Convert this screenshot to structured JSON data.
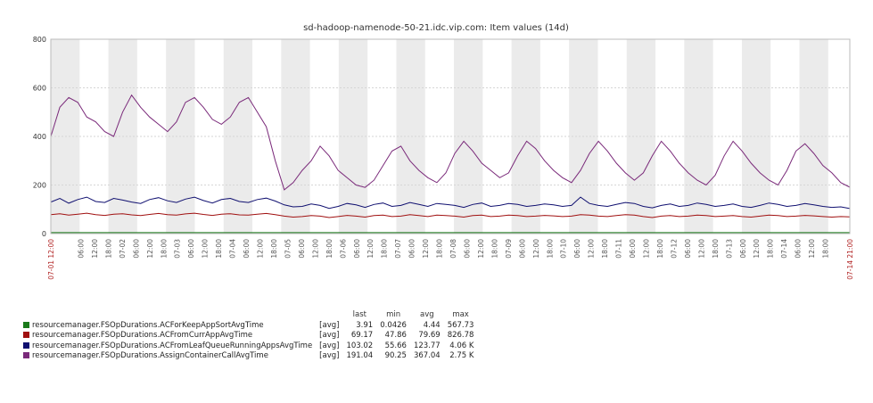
{
  "chart_data": {
    "type": "line",
    "title": "sd-hadoop-namenode-50-21.idc.vip.com: Item values (14d)",
    "ylim": [
      0,
      800
    ],
    "y_ticks": [
      "0",
      "200",
      "400",
      "600",
      "800"
    ],
    "grid": true,
    "legend_position": "bottom-left",
    "legend_headers": [
      "last",
      "min",
      "avg",
      "max"
    ],
    "x_start_label": "07-01 12:00",
    "x_end_label": "07-14 21:00",
    "x_tick_labels": [
      "06:00",
      "12:00",
      "18:00",
      "07-02",
      "06:00",
      "12:00",
      "18:00",
      "07-03",
      "06:00",
      "12:00",
      "18:00",
      "07-04",
      "06:00",
      "12:00",
      "18:00",
      "07-05",
      "06:00",
      "12:00",
      "18:00",
      "07-06",
      "06:00",
      "12:00",
      "18:00",
      "07-07",
      "06:00",
      "12:00",
      "18:00",
      "07-08",
      "06:00",
      "12:00",
      "18:00",
      "07-09",
      "06:00",
      "12:00",
      "18:00",
      "07-10",
      "06:00",
      "12:00",
      "18:00",
      "07-11",
      "06:00",
      "12:00",
      "18:00",
      "07-12",
      "06:00",
      "12:00",
      "18:00",
      "07-13",
      "06:00",
      "12:00",
      "18:00",
      "07-14",
      "06:00",
      "12:00",
      "18:00"
    ],
    "series": [
      {
        "name": "resourcemanager.FSOpDurations.ACForKeepAppSortAvgTime",
        "func": "[avg]",
        "color": "#1a7a1a",
        "last": "3.91",
        "min": "0.0426",
        "avg": "4.44",
        "max": "567.73",
        "values": [
          4,
          4,
          4,
          4,
          4,
          4,
          4,
          4,
          4,
          4,
          4,
          4,
          4,
          4,
          4,
          4,
          4,
          4,
          4,
          4,
          4,
          4,
          4,
          4,
          4,
          4,
          4,
          4,
          4,
          4,
          4,
          4,
          4,
          4,
          4,
          4,
          4,
          4,
          4,
          4,
          4,
          4,
          4,
          4,
          4,
          4,
          4,
          4,
          4,
          4,
          4,
          4,
          4,
          4,
          4,
          4,
          4,
          4,
          4,
          4,
          4,
          4,
          4,
          4,
          4,
          4,
          4,
          4,
          4,
          4,
          4,
          4,
          4,
          4,
          4,
          4,
          4,
          4,
          4,
          4,
          4,
          4,
          4,
          4,
          4,
          4,
          4,
          4,
          4,
          4
        ]
      },
      {
        "name": "resourcemanager.FSOpDurations.ACFromCurrAppAvgTime",
        "func": "[avg]",
        "color": "#a01010",
        "last": "69.17",
        "min": "47.86",
        "avg": "79.69",
        "max": "826.78",
        "values": [
          78,
          82,
          76,
          80,
          84,
          78,
          75,
          80,
          82,
          77,
          74,
          79,
          83,
          78,
          76,
          81,
          84,
          79,
          75,
          80,
          82,
          77,
          76,
          80,
          83,
          78,
          72,
          68,
          70,
          74,
          72,
          66,
          70,
          75,
          72,
          68,
          74,
          76,
          70,
          72,
          78,
          74,
          70,
          76,
          74,
          72,
          68,
          74,
          76,
          70,
          72,
          76,
          74,
          70,
          72,
          75,
          73,
          70,
          72,
          78,
          76,
          72,
          70,
          74,
          78,
          76,
          70,
          66,
          72,
          74,
          70,
          72,
          76,
          74,
          70,
          72,
          74,
          70,
          68,
          72,
          76,
          74,
          70,
          72,
          75,
          73,
          70,
          68,
          70,
          69
        ]
      },
      {
        "name": "resourcemanager.FSOpDurations.ACFromLeafQueueRunningAppsAvgTime",
        "func": "[avg]",
        "color": "#101070",
        "last": "103.02",
        "min": "55.66",
        "avg": "123.77",
        "max": "4.06 K",
        "values": [
          130,
          145,
          125,
          140,
          150,
          132,
          128,
          145,
          138,
          130,
          124,
          140,
          148,
          135,
          128,
          142,
          150,
          136,
          126,
          140,
          145,
          132,
          128,
          140,
          146,
          134,
          118,
          110,
          112,
          122,
          116,
          104,
          112,
          124,
          118,
          108,
          120,
          126,
          112,
          116,
          128,
          120,
          112,
          124,
          120,
          116,
          108,
          120,
          126,
          112,
          116,
          124,
          120,
          112,
          116,
          122,
          118,
          112,
          116,
          150,
          124,
          116,
          112,
          120,
          128,
          124,
          112,
          106,
          116,
          122,
          112,
          116,
          126,
          120,
          112,
          116,
          122,
          112,
          108,
          116,
          126,
          120,
          112,
          116,
          124,
          118,
          112,
          108,
          110,
          103
        ]
      },
      {
        "name": "resourcemanager.FSOpDurations.AssignContainerCallAvgTime",
        "func": "[avg]",
        "color": "#7a2a7a",
        "last": "191.04",
        "min": "90.25",
        "avg": "367.04",
        "max": "2.75 K",
        "values": [
          400,
          520,
          560,
          540,
          480,
          460,
          420,
          400,
          500,
          570,
          520,
          480,
          450,
          420,
          460,
          540,
          560,
          520,
          470,
          450,
          480,
          540,
          560,
          500,
          440,
          300,
          180,
          210,
          260,
          300,
          360,
          320,
          260,
          230,
          200,
          190,
          220,
          280,
          340,
          360,
          300,
          260,
          230,
          210,
          250,
          330,
          380,
          340,
          290,
          260,
          230,
          250,
          320,
          380,
          350,
          300,
          260,
          230,
          210,
          260,
          330,
          380,
          340,
          290,
          250,
          220,
          250,
          320,
          380,
          340,
          290,
          250,
          220,
          200,
          240,
          320,
          380,
          340,
          290,
          250,
          220,
          200,
          260,
          340,
          370,
          330,
          280,
          250,
          210,
          191
        ]
      }
    ]
  }
}
